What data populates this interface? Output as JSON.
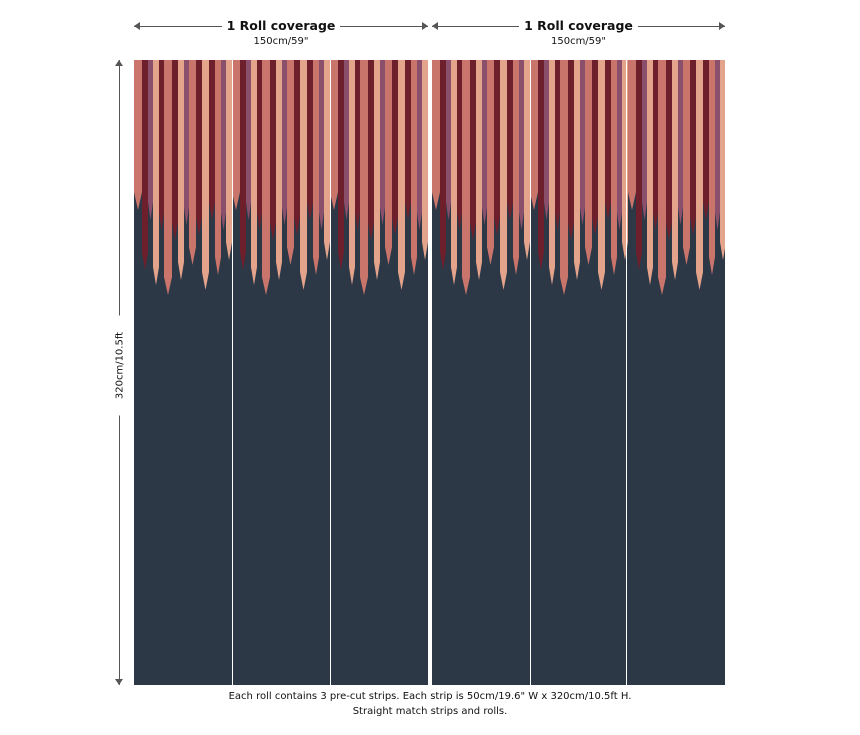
{
  "rolls": [
    {
      "title": "1 Roll coverage",
      "width": "150cm/59\""
    },
    {
      "title": "1 Roll coverage",
      "width": "150cm/59\""
    }
  ],
  "height_label": "320cm/10.5ft",
  "footnote": {
    "line1": "Each roll contains 3 pre-cut strips.  Each strip is 50cm/19.6\" W x 320cm/10.5ft H.",
    "line2": "Straight match strips and rolls."
  },
  "colors": {
    "background": "#2d3847",
    "burgundy": "#6d1f2c",
    "rose": "#c9756b",
    "peach": "#e4a48c",
    "mauve": "#8a4f6b"
  }
}
